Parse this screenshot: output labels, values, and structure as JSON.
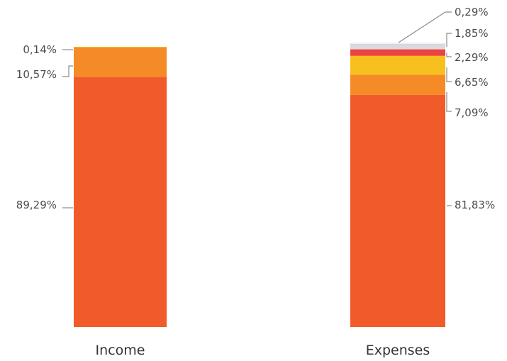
{
  "chart_data": {
    "type": "bar",
    "stacked": true,
    "categories": [
      "Income",
      "Expenses"
    ],
    "series": [
      {
        "color": "#f15a29",
        "values": [
          89.29,
          81.83
        ],
        "labels": [
          "89,29%",
          "81,83%"
        ]
      },
      {
        "color": "#f58b26",
        "values": [
          10.57,
          7.09
        ],
        "labels": [
          "10,57%",
          "7,09%"
        ]
      },
      {
        "color": "#f7c01e",
        "values": [
          0.14,
          6.65
        ],
        "labels": [
          "0,14%",
          "6,65%"
        ]
      },
      {
        "color": "#ee4141",
        "values": [
          null,
          2.29
        ],
        "labels": [
          null,
          "2,29%"
        ]
      },
      {
        "color": "#d9d9df",
        "values": [
          null,
          1.85
        ],
        "labels": [
          null,
          "1,85%"
        ]
      },
      {
        "color": "#ffffff",
        "values": [
          null,
          0.29
        ],
        "labels": [
          null,
          "0,29%"
        ]
      }
    ],
    "ylim": [
      0,
      100
    ],
    "grid": false,
    "legend": "none"
  }
}
